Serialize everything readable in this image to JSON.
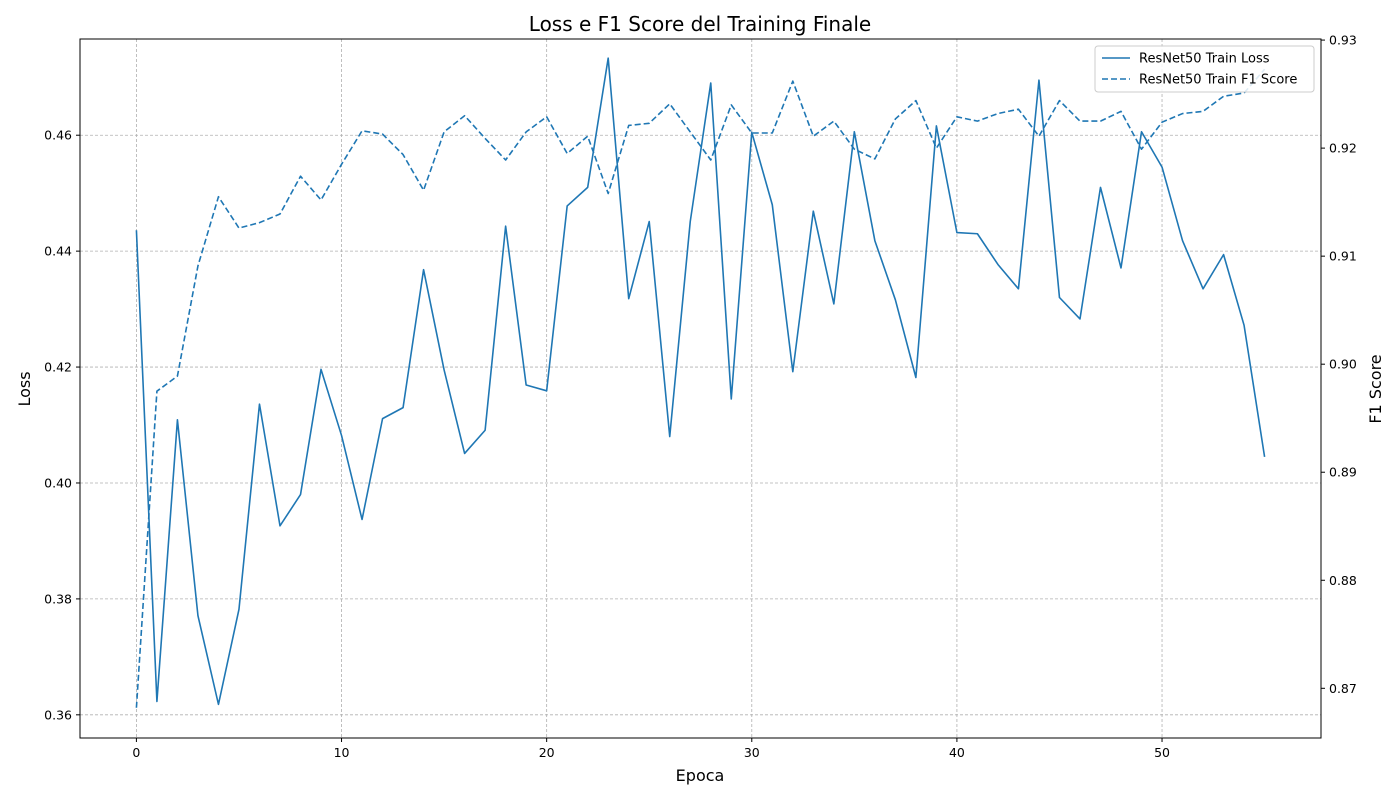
{
  "chart_data": {
    "type": "line",
    "title": "Loss e F1 Score del Training Finale",
    "xlabel": "Epoca",
    "ylabel_left": "Loss",
    "ylabel_right": "F1 Score",
    "xlim": [
      -2.75,
      57.75
    ],
    "ylim_left": [
      0.356,
      0.4766
    ],
    "ylim_right": [
      0.8654,
      0.9301
    ],
    "xticks": [
      0,
      10,
      20,
      30,
      40,
      50
    ],
    "yticks_left": [
      0.36,
      0.38,
      0.4,
      0.42,
      0.44,
      0.46
    ],
    "yticks_right": [
      0.87,
      0.88,
      0.89,
      0.9,
      0.91,
      0.92,
      0.93
    ],
    "ytick_labels_left": [
      "0.36",
      "0.38",
      "0.40",
      "0.42",
      "0.44",
      "0.46"
    ],
    "ytick_labels_right": [
      "0.87",
      "0.88",
      "0.89",
      "0.90",
      "0.91",
      "0.92",
      "0.93"
    ],
    "grid": true,
    "legend_position": "top-right",
    "color": "#1f77b4",
    "x": [
      0,
      1,
      2,
      3,
      4,
      5,
      6,
      7,
      8,
      9,
      10,
      11,
      12,
      13,
      14,
      15,
      16,
      17,
      18,
      19,
      20,
      21,
      22,
      23,
      24,
      25,
      26,
      27,
      28,
      29,
      30,
      31,
      32,
      33,
      34,
      35,
      36,
      37,
      38,
      39,
      40,
      41,
      42,
      43,
      44,
      45,
      46,
      47,
      48,
      49,
      50,
      51,
      52,
      53,
      54,
      55
    ],
    "series": [
      {
        "name": "ResNet50 Train Loss",
        "axis": "left",
        "style": "solid",
        "values": [
          0.4436,
          0.3623,
          0.4109,
          0.3771,
          0.3618,
          0.3782,
          0.4136,
          0.3926,
          0.398,
          0.4196,
          0.4082,
          0.3937,
          0.4111,
          0.413,
          0.4368,
          0.4195,
          0.4051,
          0.4091,
          0.4443,
          0.4169,
          0.4159,
          0.4478,
          0.451,
          0.4733,
          0.4318,
          0.4451,
          0.408,
          0.4451,
          0.469,
          0.4145,
          0.4605,
          0.448,
          0.4192,
          0.4469,
          0.4309,
          0.4606,
          0.4418,
          0.4316,
          0.4182,
          0.4616,
          0.4432,
          0.443,
          0.4377,
          0.4335,
          0.4695,
          0.432,
          0.4283,
          0.451,
          0.4371,
          0.4606,
          0.4545,
          0.4418,
          0.4335,
          0.4394,
          0.4272,
          0.4045
        ]
      },
      {
        "name": "ResNet50 Train F1 Score",
        "axis": "right",
        "style": "dashed",
        "values": [
          0.8682,
          0.8975,
          0.8989,
          0.9091,
          0.9155,
          0.9126,
          0.9131,
          0.9139,
          0.9174,
          0.9152,
          0.9185,
          0.9216,
          0.9213,
          0.9194,
          0.9161,
          0.9215,
          0.923,
          0.9209,
          0.9189,
          0.9215,
          0.9229,
          0.9195,
          0.9211,
          0.9158,
          0.9221,
          0.9223,
          0.9241,
          0.9215,
          0.9189,
          0.924,
          0.9214,
          0.9214,
          0.9262,
          0.9211,
          0.9225,
          0.9199,
          0.919,
          0.9227,
          0.9244,
          0.92,
          0.9229,
          0.9225,
          0.9232,
          0.9236,
          0.9211,
          0.9244,
          0.9225,
          0.9225,
          0.9234,
          0.9199,
          0.9224,
          0.9232,
          0.9234,
          0.9248,
          0.9251,
          0.9273
        ]
      }
    ]
  }
}
